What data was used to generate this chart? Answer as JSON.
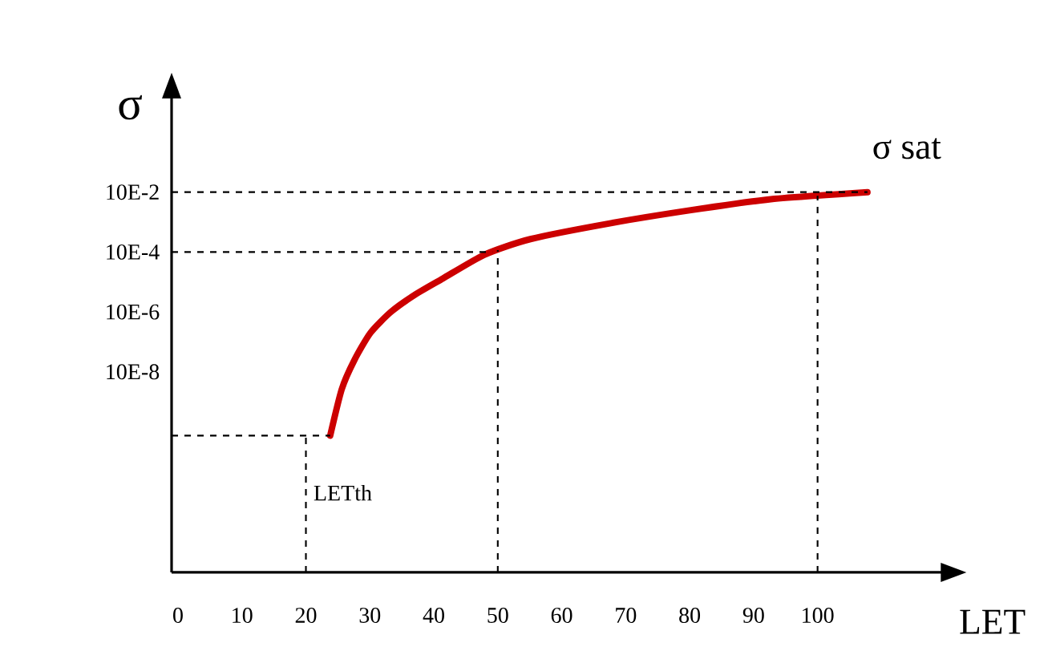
{
  "chart_data": {
    "type": "line",
    "xlabel": "LET",
    "ylabel": "σ",
    "log": "y",
    "line_style": "solid",
    "xlim": [
      -1,
      119.6
    ],
    "ylim": [
      2e-14,
      160
    ],
    "xticks": [
      0,
      10,
      20,
      30,
      40,
      50,
      60,
      70,
      80,
      90,
      100
    ],
    "yticks": [
      {
        "value": 0.1,
        "label": "10E-2"
      },
      {
        "value": 0.001,
        "label": "10E-4"
      },
      {
        "value": 1e-05,
        "label": "10E-6"
      },
      {
        "value": 1e-07,
        "label": "10E-8"
      }
    ],
    "series": [
      {
        "color": "#cc0000",
        "x": [
          23.8,
          25.6,
          27.6,
          30.1,
          33.3,
          37.1,
          41.4,
          47.9,
          55.1,
          67.7,
          80.2,
          92.7,
          107.8
        ],
        "values": [
          7.4e-10,
          2.6e-08,
          2.5e-07,
          2e-06,
          1e-05,
          3.8e-05,
          0.00013,
          0.00081,
          0.0027,
          0.0092,
          0.025,
          0.058,
          0.1
        ]
      }
    ],
    "ref_lines": [
      {
        "axis": "x",
        "value": 20,
        "label": "LETth",
        "line_style": "dashed"
      },
      {
        "axis": "x",
        "value": 50,
        "line_style": "dashed"
      },
      {
        "axis": "x",
        "value": 100,
        "line_style": "dashed"
      },
      {
        "axis": "y",
        "value": 7.4e-10,
        "line_style": "dashed"
      },
      {
        "axis": "y",
        "value": 0.001,
        "line_style": "dashed"
      },
      {
        "axis": "y",
        "value": 0.1,
        "line_style": "dashed"
      }
    ],
    "annotations": [
      {
        "text": "σ sat",
        "x": 100,
        "y": 0.1
      }
    ]
  }
}
